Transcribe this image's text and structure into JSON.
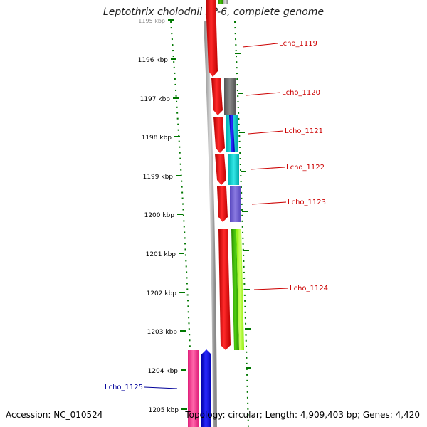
{
  "title": "Leptothrix cholodnii SP-6, complete genome",
  "footer": {
    "accession": "Accession: NC_010524",
    "summary": "Topology: circular; Length: 4,909,403 bp; Genes: 4,420"
  },
  "ruler": {
    "unit": "kbp",
    "ticks": [
      "1195 kbp",
      "1196 kbp",
      "1197 kbp",
      "1198 kbp",
      "1199 kbp",
      "1200 kbp",
      "1201 kbp",
      "1202 kbp",
      "1203 kbp",
      "1204 kbp",
      "1205 kbp"
    ]
  },
  "genes": [
    {
      "label": "Lcho_1119",
      "color": "#cc0000"
    },
    {
      "label": "Lcho_1120",
      "color": "#cc0000"
    },
    {
      "label": "Lcho_1121",
      "color": "#cc0000"
    },
    {
      "label": "Lcho_1122",
      "color": "#cc0000"
    },
    {
      "label": "Lcho_1123",
      "color": "#cc0000"
    },
    {
      "label": "Lcho_1124",
      "color": "#cc0000"
    },
    {
      "label": "Lcho_1125",
      "color": "#000099"
    }
  ],
  "colors": {
    "forward_strand": "#ff0000",
    "reverse_strand": "#0000ff",
    "backbone": "#888888",
    "tick": "#007700",
    "gray_feature": "#6e6e6e",
    "cyan_feature": "#00cccc",
    "purple_feature": "#6a5acd",
    "green_feature": "#33aa00",
    "lime_feature": "#99ff00",
    "pink_feature": "#ff3399"
  }
}
